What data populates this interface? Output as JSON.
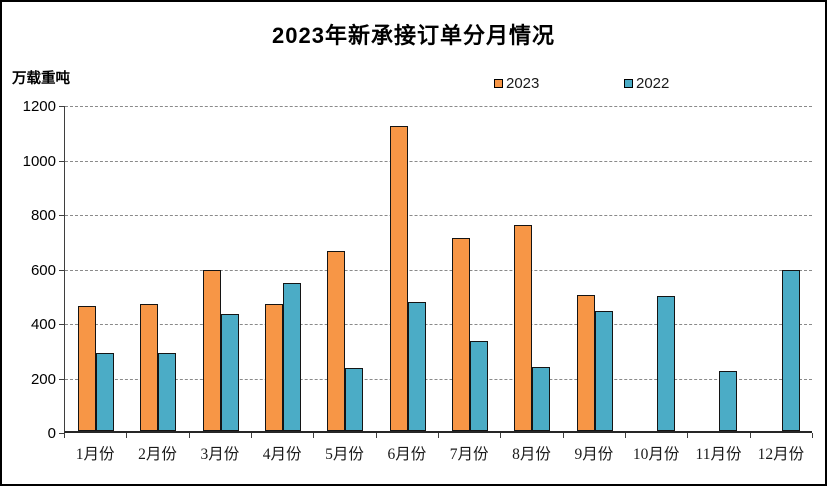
{
  "title": "2023年新承接订单分月情况",
  "y_axis_unit": "万载重吨",
  "chart_data": {
    "type": "bar",
    "title": "2023年新承接订单分月情况",
    "ylabel": "万载重吨",
    "xlabel": "",
    "categories": [
      "1月份",
      "2月份",
      "3月份",
      "4月份",
      "5月份",
      "6月份",
      "7月份",
      "8月份",
      "9月份",
      "10月份",
      "11月份",
      "12月份"
    ],
    "series": [
      {
        "name": "2023",
        "color": "#F79646",
        "values": [
          460,
          465,
          590,
          465,
          660,
          1120,
          710,
          755,
          500,
          null,
          null,
          null
        ]
      },
      {
        "name": "2022",
        "color": "#4BACC6",
        "values": [
          285,
          285,
          430,
          545,
          230,
          475,
          330,
          235,
          440,
          495,
          220,
          590
        ]
      }
    ],
    "ylim": [
      0,
      1200
    ],
    "y_ticks": [
      0,
      200,
      400,
      600,
      800,
      1000,
      1200
    ],
    "grid": "horizontal-dashed",
    "legend_position": "top-right-above-plot",
    "bar_border_color": "#141414"
  }
}
